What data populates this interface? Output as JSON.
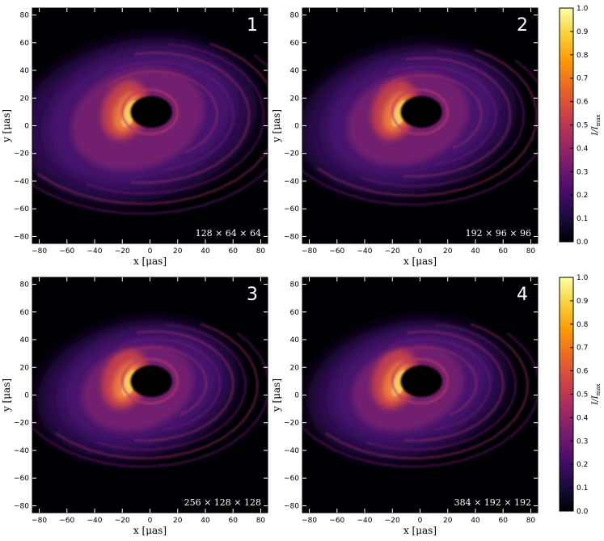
{
  "chart_data": [
    {
      "type": "heatmap",
      "panel_label": "1",
      "resolution_label": "128 × 64 × 64",
      "xlabel": "x [μas]",
      "ylabel": "y [μas]",
      "xlim": [
        -85,
        85
      ],
      "ylim": [
        -85,
        85
      ],
      "x_ticks": [
        -80,
        -60,
        -40,
        -20,
        0,
        20,
        40,
        60,
        80
      ],
      "y_ticks": [
        80,
        60,
        40,
        20,
        0,
        -20,
        -40,
        -60,
        -80
      ],
      "shadow_center": [
        0,
        10
      ],
      "peak_location": [
        -20,
        12
      ],
      "disk_extent": "broad",
      "grid": false
    },
    {
      "type": "heatmap",
      "panel_label": "2",
      "resolution_label": "192 × 96 × 96",
      "xlabel": "x [μas]",
      "ylabel": "y [μas]",
      "xlim": [
        -85,
        85
      ],
      "ylim": [
        -85,
        85
      ],
      "x_ticks": [
        -80,
        -60,
        -40,
        -20,
        0,
        20,
        40,
        60,
        80
      ],
      "y_ticks": [
        80,
        60,
        40,
        20,
        0,
        -20,
        -40,
        -60,
        -80
      ],
      "shadow_center": [
        0,
        10
      ],
      "peak_location": [
        -20,
        12
      ],
      "disk_extent": "medium",
      "grid": false
    },
    {
      "type": "heatmap",
      "panel_label": "3",
      "resolution_label": "256 × 128 × 128",
      "xlabel": "x [μas]",
      "ylabel": "y [μas]",
      "xlim": [
        -85,
        85
      ],
      "ylim": [
        -85,
        85
      ],
      "x_ticks": [
        -80,
        -60,
        -40,
        -20,
        0,
        20,
        40,
        60,
        80
      ],
      "y_ticks": [
        80,
        60,
        40,
        20,
        0,
        -20,
        -40,
        -60,
        -80
      ],
      "shadow_center": [
        0,
        10
      ],
      "peak_location": [
        -20,
        12
      ],
      "disk_extent": "compact",
      "grid": false
    },
    {
      "type": "heatmap",
      "panel_label": "4",
      "resolution_label": "384 × 192 × 192",
      "xlabel": "x [μas]",
      "ylabel": "y [μas]",
      "xlim": [
        -85,
        85
      ],
      "ylim": [
        -85,
        85
      ],
      "x_ticks": [
        -80,
        -60,
        -40,
        -20,
        0,
        20,
        40,
        60,
        80
      ],
      "y_ticks": [
        80,
        60,
        40,
        20,
        0,
        -20,
        -40,
        -60,
        -80
      ],
      "shadow_center": [
        0,
        10
      ],
      "peak_location": [
        -20,
        12
      ],
      "disk_extent": "compact",
      "grid": false
    }
  ],
  "colorbar": {
    "label": "I/I_max",
    "colormap": "inferno",
    "range": [
      0.0,
      1.0
    ],
    "ticks": [
      "1.0",
      "0.9",
      "0.8",
      "0.7",
      "0.6",
      "0.5",
      "0.4",
      "0.3",
      "0.2",
      "0.1",
      "0.0"
    ],
    "colors": [
      "#000004",
      "#1b0c41",
      "#4a0c6b",
      "#781c6d",
      "#a52c60",
      "#cf4446",
      "#ed6925",
      "#fb9b06",
      "#f7d13d",
      "#fcffa4"
    ]
  }
}
